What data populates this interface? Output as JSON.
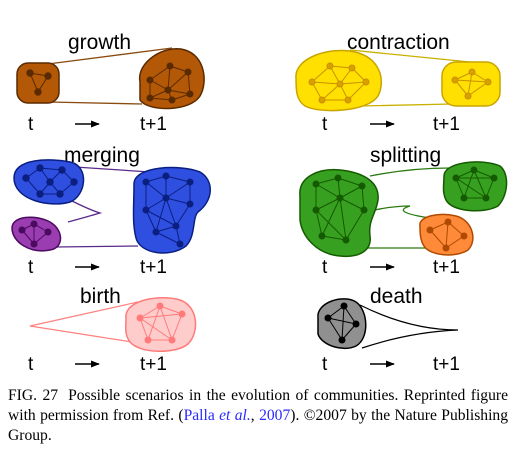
{
  "panels": {
    "growth": {
      "title": "growth",
      "t": "t",
      "t1": "t+1"
    },
    "contraction": {
      "title": "contraction",
      "t": "t",
      "t1": "t+1"
    },
    "merging": {
      "title": "merging",
      "t": "t",
      "t1": "t+1"
    },
    "splitting": {
      "title": "splitting",
      "t": "t",
      "t1": "t+1"
    },
    "birth": {
      "title": "birth",
      "t": "t",
      "t1": "t+1"
    },
    "death": {
      "title": "death",
      "t": "t",
      "t1": "t+1"
    }
  },
  "caption": {
    "fig_id": "FIG. 27",
    "text_1": "Possible scenarios in the evolution of communities. Reprinted figure with permission from Ref. (",
    "ref_author": "Palla ",
    "ref_etal": "et al.",
    "ref_sep": ", ",
    "ref_year": "2007",
    "text_2": "). ©2007 by the Nature Publishing Group."
  },
  "colors": {
    "growth": "#b35806",
    "contraction": "#ffe000",
    "merging_large": "#2f4fe0",
    "merging_small": "#9a3db0",
    "splitting_green": "#38a020",
    "splitting_orange": "#ff8a3a",
    "birth": "#ff9a9a",
    "death": "#909090",
    "link": "#2a2aff"
  }
}
